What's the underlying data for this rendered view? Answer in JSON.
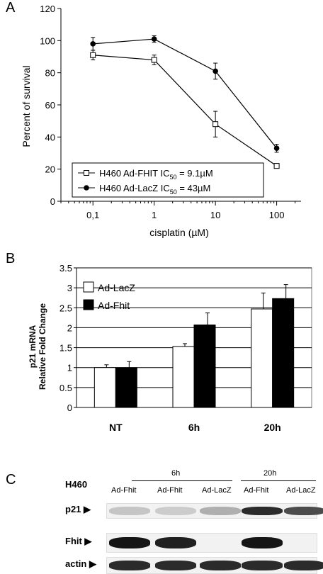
{
  "panels": {
    "a": "A",
    "b": "B",
    "c": "C"
  },
  "chart_data": [
    {
      "type": "line",
      "ylabel": "Percent of survival",
      "xlabel": "cisplatin (µM)",
      "xscale": "log",
      "xticks": [
        "0,1",
        "1",
        "10",
        "100"
      ],
      "yticks": [
        "0",
        "20",
        "40",
        "60",
        "80",
        "100",
        "120"
      ],
      "ylim": [
        0,
        120
      ],
      "x": [
        0.1,
        1,
        10,
        100
      ],
      "legend_position": "bottom-left",
      "series": [
        {
          "name": "H460 Ad-FHIT IC50 = 9.1µM",
          "marker": "open-square",
          "values": [
            91,
            88,
            48,
            22
          ],
          "errors": [
            3,
            3,
            8,
            1.5
          ]
        },
        {
          "name": "H460 Ad-LacZ IC50 = 43µM",
          "marker": "filled-circle",
          "values": [
            98,
            101,
            81,
            33
          ],
          "errors": [
            4,
            2,
            5,
            2.5
          ]
        }
      ],
      "legend": [
        {
          "prefix": "H460 Ad-FHIT IC",
          "sub": "50",
          "suffix": " = 9.1µM"
        },
        {
          "prefix": "H460 Ad-LacZ IC",
          "sub": "50",
          "suffix": " = 43µM"
        }
      ]
    },
    {
      "type": "bar",
      "ylabel_line1": "p21 mRNA",
      "ylabel_line2": "Relative Fold Change",
      "categories": [
        "NT",
        "6h",
        "20h"
      ],
      "yticks": [
        "0",
        "0.5",
        "1",
        "1.5",
        "2",
        "2.5",
        "3",
        "3.5"
      ],
      "ylim": [
        0,
        3.5
      ],
      "grid": true,
      "legend_position": "top-left",
      "series": [
        {
          "name": "Ad-LacZ",
          "color": "#ffffff",
          "values": [
            1.0,
            1.53,
            2.47
          ],
          "errors": [
            0.07,
            0.07,
            0.4
          ]
        },
        {
          "name": "Ad-Fhit",
          "color": "#000000",
          "values": [
            1.0,
            2.07,
            2.73
          ],
          "errors": [
            0.15,
            0.3,
            0.35
          ]
        }
      ]
    }
  ],
  "blot": {
    "cell_line": "H460",
    "time_6h": "6h",
    "time_20h": "20h",
    "lanes": [
      "Ad-Fhit",
      "Ad-Fhit",
      "Ad-LacZ",
      "Ad-Fhit",
      "Ad-LacZ"
    ],
    "rows": [
      {
        "label": "p21",
        "intensity": [
          0.15,
          0.12,
          0.25,
          0.85,
          0.7
        ]
      },
      {
        "label": "Fhit",
        "intensity": [
          0.95,
          0.9,
          0.0,
          0.95,
          0.0
        ]
      },
      {
        "label": "actin",
        "intensity": [
          0.85,
          0.85,
          0.85,
          0.85,
          0.85
        ]
      }
    ]
  }
}
